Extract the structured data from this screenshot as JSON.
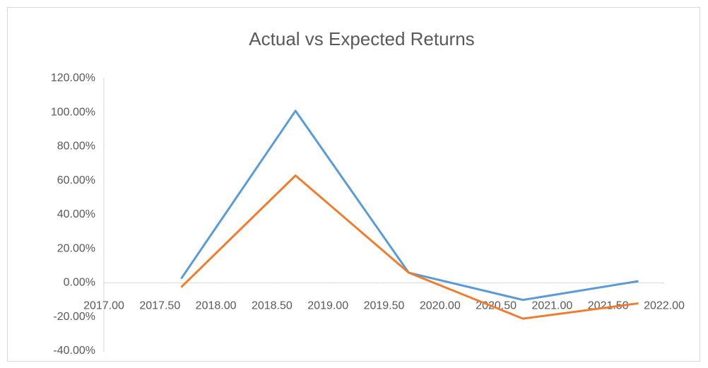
{
  "chart_data": {
    "type": "line",
    "title": "Actual vs Expected Returns",
    "x": [
      2017.69,
      2018.71,
      2019.72,
      2020.74,
      2021.77
    ],
    "series": [
      {
        "color": "#5b9bd5",
        "values": [
          2.5,
          101,
          6,
          -10,
          1
        ]
      },
      {
        "color": "#ed7d31",
        "values": [
          -2.5,
          63,
          6,
          -21,
          -12
        ]
      }
    ],
    "xlim": [
      2017,
      2022
    ],
    "xticks": [
      {
        "value": 2017,
        "label": "2017.00"
      },
      {
        "value": 2017.5,
        "label": "2017.50"
      },
      {
        "value": 2018,
        "label": "2018.00"
      },
      {
        "value": 2018.5,
        "label": "2018.50"
      },
      {
        "value": 2019,
        "label": "2019.00"
      },
      {
        "value": 2019.5,
        "label": "2019.50"
      },
      {
        "value": 2020,
        "label": "2020.00"
      },
      {
        "value": 2020.5,
        "label": "2020.50"
      },
      {
        "value": 2021,
        "label": "2021.00"
      },
      {
        "value": 2021.5,
        "label": "2021.50"
      },
      {
        "value": 2022,
        "label": "2022.00"
      }
    ],
    "ylim": [
      -40,
      120
    ],
    "yticks": [
      {
        "value": -40,
        "label": "-40.00%"
      },
      {
        "value": -20,
        "label": "-20.00%"
      },
      {
        "value": 0,
        "label": "0.00%"
      },
      {
        "value": 20,
        "label": "20.00%"
      },
      {
        "value": 40,
        "label": "40.00%"
      },
      {
        "value": 60,
        "label": "60.00%"
      },
      {
        "value": 80,
        "label": "80.00%"
      },
      {
        "value": 100,
        "label": "100.00%"
      },
      {
        "value": 120,
        "label": "120.00%"
      }
    ],
    "grid": false
  }
}
